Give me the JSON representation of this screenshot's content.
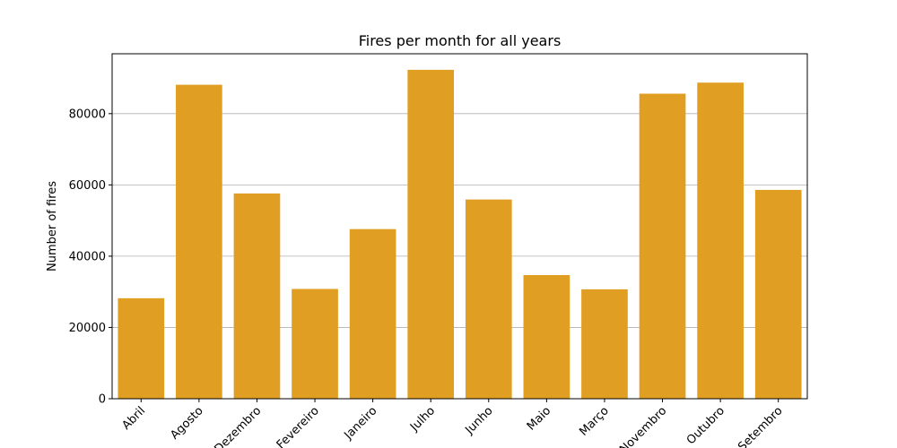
{
  "chart_data": {
    "type": "bar",
    "title": "Fires per month for all years",
    "xlabel": "",
    "ylabel": "Number of fires",
    "categories": [
      "Abril",
      "Agosto",
      "Dezembro",
      "Fevereiro",
      "Janeiro",
      "Julho",
      "Junho",
      "Maio",
      "Março",
      "Novembro",
      "Outubro",
      "Setembro"
    ],
    "values": [
      28200,
      88100,
      57600,
      30800,
      47600,
      92300,
      55900,
      34700,
      30700,
      85600,
      88700,
      58600
    ],
    "ylim": [
      0,
      96800
    ],
    "yticks": [
      0,
      20000,
      40000,
      60000,
      80000
    ],
    "ytick_labels": [
      "0",
      "20000",
      "40000",
      "60000",
      "80000"
    ],
    "grid": "y",
    "bar_color": "#e09e22"
  }
}
